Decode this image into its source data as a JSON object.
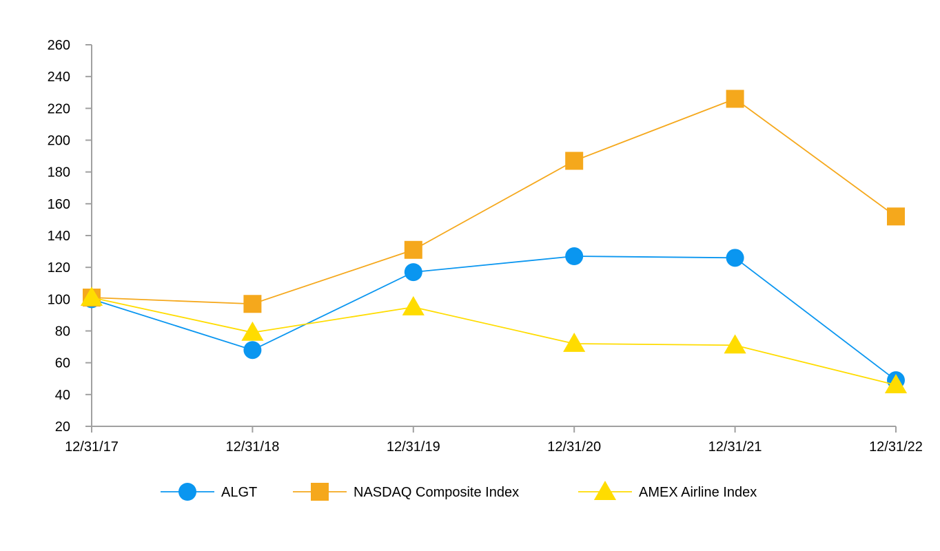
{
  "chart_data": {
    "type": "line",
    "title": "",
    "xlabel": "",
    "ylabel": "",
    "categories": [
      "12/31/17",
      "12/31/18",
      "12/31/19",
      "12/31/20",
      "12/31/21",
      "12/31/22"
    ],
    "ylim": [
      20,
      260
    ],
    "yticks": [
      20,
      40,
      60,
      80,
      100,
      120,
      140,
      160,
      180,
      200,
      220,
      240,
      260
    ],
    "grid": false,
    "legend": "bottom",
    "series": [
      {
        "name": "ALGT",
        "marker": "circle",
        "color": "#0a96f0",
        "values": [
          100,
          68,
          117,
          127,
          126,
          49
        ]
      },
      {
        "name": "NASDAQ Composite Index",
        "marker": "square",
        "color": "#f5a81c",
        "values": [
          101,
          97,
          131,
          187,
          226,
          152
        ]
      },
      {
        "name": "AMEX Airline Index",
        "marker": "triangle",
        "color": "#ffdc00",
        "values": [
          101,
          79,
          95,
          72,
          71,
          46
        ]
      }
    ],
    "axis_color": "#a0a0a0"
  }
}
